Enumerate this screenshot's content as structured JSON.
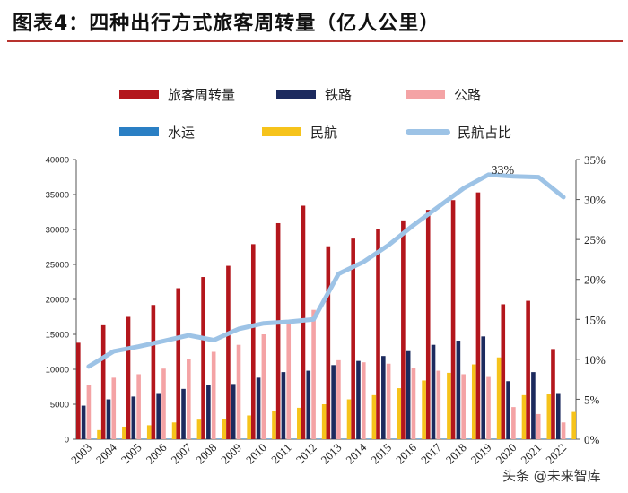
{
  "header": {
    "title": "图表4：四种出行方式旅客周转量（亿人公里）"
  },
  "watermark": "头条 @未来智库",
  "colors": {
    "total": "#b3161c",
    "rail": "#1c2a5e",
    "road": "#f4a3a5",
    "water": "#2a7fc4",
    "air": "#f6c31b",
    "air_share": "#9dc3e6",
    "accent_rule": "#b8332e"
  },
  "chart_data": {
    "type": "bar",
    "title": "四种出行方式旅客周转量（亿人公里）",
    "categories": [
      "2003",
      "2004",
      "2005",
      "2006",
      "2007",
      "2008",
      "2009",
      "2010",
      "2011",
      "2012",
      "2013",
      "2014",
      "2015",
      "2016",
      "2017",
      "2018",
      "2019",
      "2020",
      "2021",
      "2022"
    ],
    "series": [
      {
        "key": "total",
        "name": "旅客周转量",
        "axis": "left",
        "values": [
          13800,
          16300,
          17500,
          19200,
          21600,
          23200,
          24800,
          27900,
          30900,
          33400,
          27600,
          28700,
          30100,
          31300,
          32800,
          34200,
          35300,
          19300,
          19800,
          12900
        ]
      },
      {
        "key": "rail",
        "name": "铁路",
        "axis": "left",
        "values": [
          4800,
          5700,
          6100,
          6600,
          7200,
          7800,
          7900,
          8800,
          9600,
          9800,
          10600,
          11200,
          11900,
          12600,
          13500,
          14100,
          14700,
          8300,
          9600,
          6600
        ]
      },
      {
        "key": "road",
        "name": "公路",
        "axis": "left",
        "values": [
          7700,
          8800,
          9300,
          10100,
          11500,
          12500,
          13500,
          15000,
          16800,
          18500,
          11300,
          11000,
          10800,
          10200,
          9800,
          9300,
          8900,
          4600,
          3600,
          2400
        ]
      },
      {
        "key": "water",
        "name": "水运",
        "axis": "left",
        "values": [
          60,
          70,
          70,
          74,
          78,
          60,
          70,
          72,
          75,
          78,
          68,
          74,
          73,
          72,
          77,
          80,
          80,
          33,
          33,
          22
        ]
      },
      {
        "key": "air",
        "name": "民航",
        "axis": "left",
        "values": [
          1300,
          1800,
          2000,
          2400,
          2800,
          2900,
          3400,
          4000,
          4500,
          5000,
          5700,
          6300,
          7300,
          8400,
          9500,
          10700,
          11700,
          6300,
          6500,
          3900
        ]
      },
      {
        "key": "air_share",
        "name": "民航占比",
        "axis": "right",
        "type": "line",
        "values": [
          9.1,
          11,
          11.6,
          12.3,
          13,
          12.4,
          13.8,
          14.5,
          14.7,
          15,
          20.7,
          22.2,
          24.3,
          26.8,
          29.1,
          31.4,
          33.1,
          32.9,
          32.8,
          30.3
        ]
      }
    ],
    "y_left": {
      "min": 0,
      "max": 40000,
      "ticks": [
        "0",
        "5000",
        "10000",
        "15000",
        "20000",
        "25000",
        "30000",
        "35000",
        "40000"
      ]
    },
    "y_right": {
      "min": 0,
      "max": 35,
      "ticks": [
        "0%",
        "5%",
        "10%",
        "15%",
        "20%",
        "25%",
        "30%",
        "35%"
      ]
    },
    "annotation": {
      "text": "33%",
      "category": "2020",
      "value": 33
    },
    "legend_position": "top",
    "grid": false
  }
}
